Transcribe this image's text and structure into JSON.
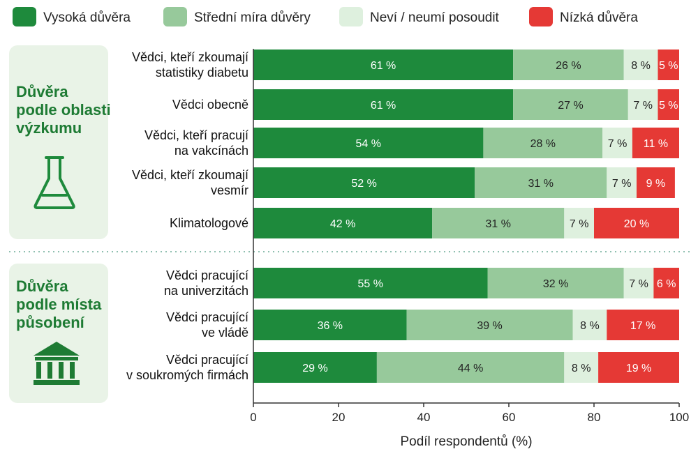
{
  "chart_data": {
    "type": "bar",
    "orientation": "horizontal",
    "stacked": true,
    "xlabel": "Podíl respondentů (%)",
    "xlim": [
      0,
      100
    ],
    "xticks": [
      0,
      20,
      40,
      60,
      80,
      100
    ],
    "legend_position": "top",
    "unit_suffix": " %",
    "series": [
      {
        "name": "Vysoká důvěra",
        "color": "#1e8a3c",
        "label_color": "#ffffff"
      },
      {
        "name": "Střední míra důvěry",
        "color": "#97c99b",
        "label_color": "#222222"
      },
      {
        "name": "Neví / neumí posoudit",
        "color": "#def0de",
        "label_color": "#222222"
      },
      {
        "name": "Nízká důvěra",
        "color": "#e53935",
        "label_color": "#ffffff"
      }
    ],
    "groups": [
      {
        "title_lines": [
          "Důvěra",
          "podle oblasti",
          "výzkumu"
        ],
        "icon": "flask-icon",
        "rows": [
          {
            "label_lines": [
              "Vědci, kteří zkoumají",
              "statistiky diabetu"
            ],
            "values": [
              61,
              26,
              8,
              5
            ]
          },
          {
            "label_lines": [
              "Vědci obecně"
            ],
            "values": [
              61,
              27,
              7,
              5
            ]
          },
          {
            "label_lines": [
              "Vědci, kteří pracují",
              "na vakcínách"
            ],
            "values": [
              54,
              28,
              7,
              11
            ]
          },
          {
            "label_lines": [
              "Vědci, kteří zkoumají",
              "vesmír"
            ],
            "values": [
              52,
              31,
              7,
              9
            ]
          },
          {
            "label_lines": [
              "Klimatologové"
            ],
            "values": [
              42,
              31,
              7,
              20
            ]
          }
        ]
      },
      {
        "title_lines": [
          "Důvěra",
          "podle místa",
          "působení"
        ],
        "icon": "building-icon",
        "rows": [
          {
            "label_lines": [
              "Vědci pracující",
              "na univerzitách"
            ],
            "values": [
              55,
              32,
              7,
              6
            ]
          },
          {
            "label_lines": [
              "Vědci pracující",
              "ve vládě"
            ],
            "values": [
              36,
              39,
              8,
              17
            ]
          },
          {
            "label_lines": [
              "Vědci pracující",
              "v soukromých firmách"
            ],
            "values": [
              29,
              44,
              8,
              19
            ]
          }
        ]
      }
    ]
  }
}
